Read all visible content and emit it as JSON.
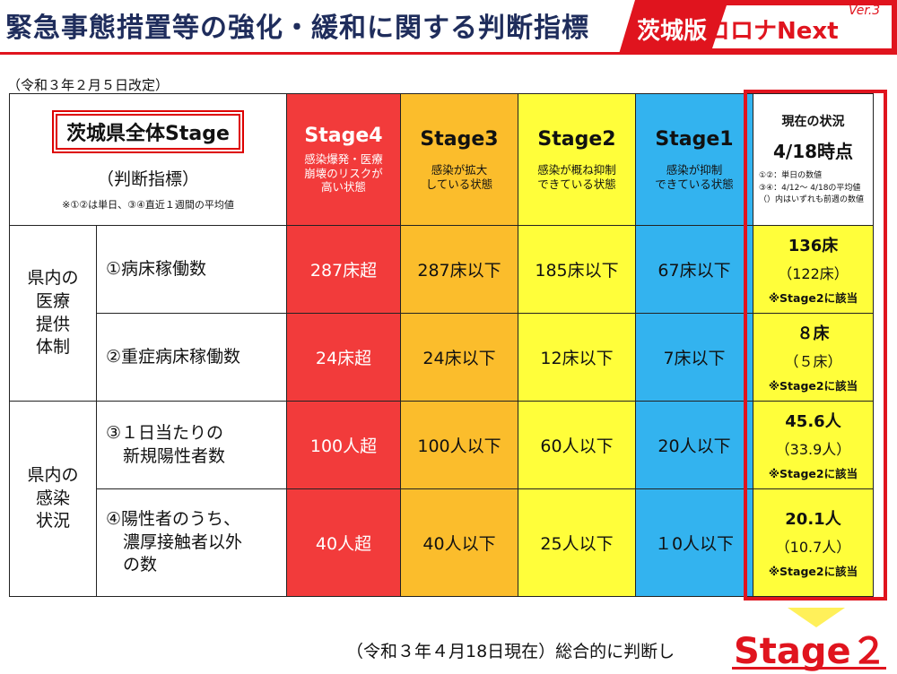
{
  "title": "緊急事態措置等の強化・緩和に関する判断指標",
  "brand": {
    "prefix": "茨城版",
    "mid": "コロ",
    "suffix": "ナNext",
    "version": "Ver.3"
  },
  "revision": "（令和３年２月５日改定）",
  "header": {
    "pref_stage": "茨城県全体Stage",
    "judge": "（判断指標）",
    "judge_note": "※①②は単日、③④直近１週間の平均値",
    "stage4": {
      "label": "Stage4",
      "desc1": "感染爆発・医療",
      "desc2": "崩壊のリスクが",
      "desc3": "高い状態"
    },
    "stage3": {
      "label": "Stage3",
      "desc1": "感染が拡大",
      "desc2": "している状態"
    },
    "stage2": {
      "label": "Stage2",
      "desc1": "感染が概ね抑制",
      "desc2": "できている状態"
    },
    "stage1": {
      "label": "Stage1",
      "desc1": "感染が抑制",
      "desc2": "できている状態"
    },
    "now": {
      "title": "現在の状況",
      "date": "4/18時点",
      "note1": "①②：単日の数値",
      "note2": "③④：4/12～ 4/18の平均値",
      "note3": "（）内はいずれも前週の数値"
    }
  },
  "categories": {
    "medical": [
      "県内の",
      "医療",
      "提供",
      "体制"
    ],
    "infection": [
      "県内の",
      "感染",
      "状況"
    ]
  },
  "rows": [
    {
      "item": [
        "①病床稼働数"
      ],
      "s4": "287床超",
      "s3": "287床以下",
      "s2": "185床以下",
      "s1": "67床以下",
      "cur": "136床",
      "prev": "（122床）",
      "note": "※Stage2に該当"
    },
    {
      "item": [
        "②重症病床稼働数"
      ],
      "s4": "24床超",
      "s3": "24床以下",
      "s2": "12床以下",
      "s1": "7床以下",
      "cur": "８床",
      "prev": "（５床）",
      "note": "※Stage2に該当"
    },
    {
      "item": [
        "③１日当たりの",
        "　新規陽性者数"
      ],
      "s4": "100人超",
      "s3": "100人以下",
      "s2": "60人以下",
      "s1": "20人以下",
      "cur": "45.6人",
      "prev": "（33.9人）",
      "note": "※Stage2に該当"
    },
    {
      "item": [
        "④陽性者のうち、",
        "　濃厚接触者以外",
        "　の数"
      ],
      "s4": "40人超",
      "s3": "40人以下",
      "s2": "25人以下",
      "s1": "１0人以下",
      "cur": "20.1人",
      "prev": "（10.7人）",
      "note": "※Stage2に該当"
    }
  ],
  "footer": {
    "text": "（令和３年４月18日現在）総合的に判断し",
    "stage": "Stage２"
  },
  "colors": {
    "stage4": "#f23b3b",
    "stage3": "#fbbd2c",
    "stage2": "#fffe3a",
    "stage1": "#33b3ef",
    "accent": "#e0141e",
    "title": "#1f2d5c"
  }
}
